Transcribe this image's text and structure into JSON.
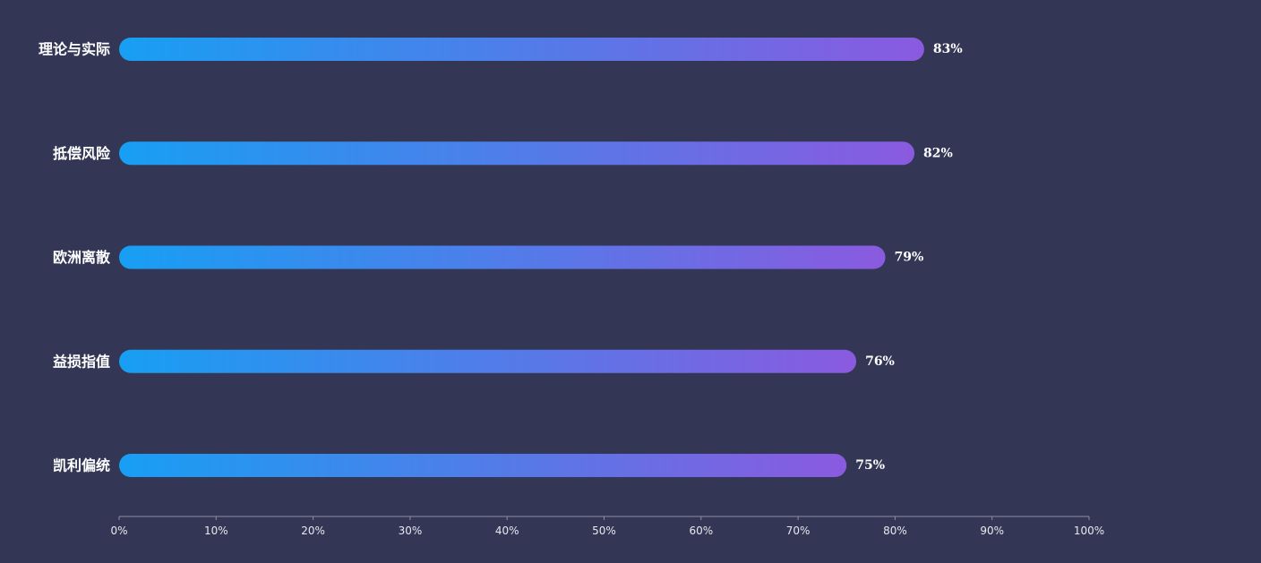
{
  "chart_data": {
    "type": "bar",
    "orientation": "horizontal",
    "categories": [
      "理论与实际",
      "抵偿风险",
      "欧洲离散",
      "益损指值",
      "凯利偏统"
    ],
    "values": [
      83,
      82,
      79,
      76,
      75
    ],
    "value_suffix": "%",
    "xlim": [
      0,
      100
    ],
    "xticks": [
      "0%",
      "10%",
      "20%",
      "30%",
      "40%",
      "50%",
      "60%",
      "70%",
      "80%",
      "90%",
      "100%"
    ],
    "title": "",
    "xlabel": "",
    "ylabel": "",
    "grid": false,
    "colors": {
      "bar_start": "#179ff3",
      "bar_end": "#8a5adf",
      "background": "#333755",
      "axis": "#8b8ea6"
    }
  }
}
